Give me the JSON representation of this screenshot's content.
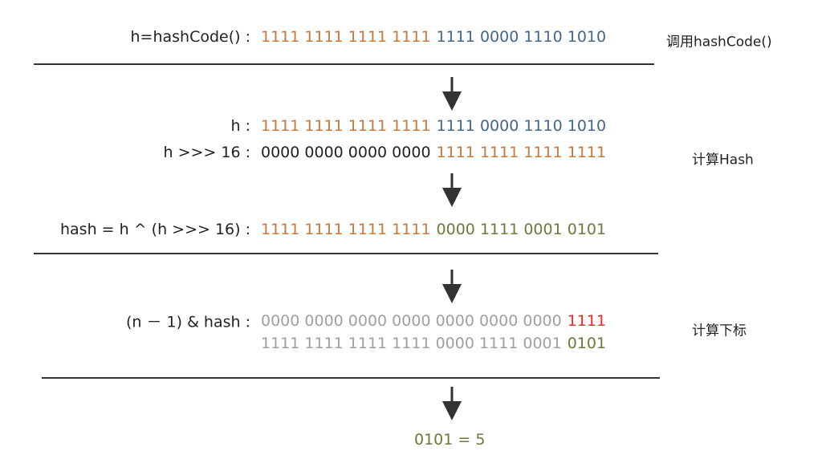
{
  "sections": [
    {
      "note": "调用hashCode()",
      "rows": [
        {
          "label": "h=hashCode() :",
          "segments": [
            {
              "text": "1111 1111 1111 1111",
              "color": "#c8773a"
            },
            {
              "text": "1111 0000 1110 1010",
              "color": "#44668c"
            }
          ]
        }
      ]
    },
    {
      "note": "计算Hash",
      "rows": [
        {
          "label": "h :",
          "segments": [
            {
              "text": "1111 1111 1111 1111",
              "color": "#c8773a"
            },
            {
              "text": "1111 0000 1110 1010",
              "color": "#44668c"
            }
          ]
        },
        {
          "label": "h >>> 16 :",
          "segments": [
            {
              "text": "0000 0000 0000 0000",
              "color": "#222222"
            },
            {
              "text": "1111 1111 1111 1111",
              "color": "#c8773a"
            }
          ]
        },
        {
          "label": "hash = h ^ (h >>> 16) :",
          "segments": [
            {
              "text": "1111 1111 1111 1111",
              "color": "#c8773a"
            },
            {
              "text": "0000 1111 0001 0101",
              "color": "#6b7a3a"
            }
          ]
        }
      ]
    },
    {
      "note": "计算下标",
      "rows": [
        {
          "label": "(n － 1) & hash :",
          "segments": [
            {
              "text": "0000 0000 0000 0000 0000 0000 0000",
              "color": "#a0a0a0"
            },
            {
              "text": "1111",
              "color": "#e0302a"
            }
          ]
        },
        {
          "segments": [
            {
              "text": "1111 1111 1111 1111 0000 1111 0001",
              "color": "#a0a0a0"
            },
            {
              "text": "0101",
              "color": "#6b7a3a"
            }
          ]
        }
      ]
    }
  ],
  "result": {
    "text": "0101 = 5",
    "color": "#6b7a3a"
  }
}
